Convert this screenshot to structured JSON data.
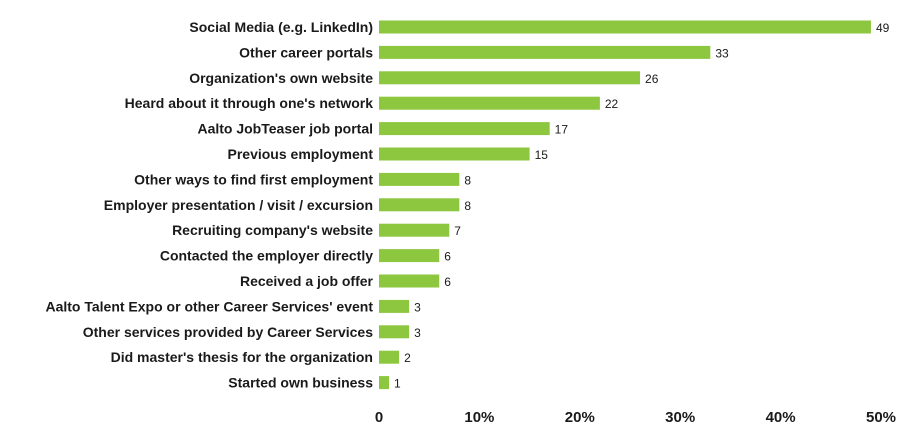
{
  "chart_data": {
    "type": "bar",
    "orientation": "horizontal",
    "title": "",
    "xlabel": "",
    "ylabel": "",
    "categories": [
      "Social Media (e.g. LinkedIn)",
      "Other career portals",
      "Organization's own website",
      "Heard about it  through one's network",
      "Aalto JobTeaser job portal",
      "Previous employment",
      "Other ways to find first employment",
      "Employer presentation / visit / excursion",
      "Recruiting company's website",
      "Contacted the employer directly",
      "Received a job offer",
      "Aalto Talent Expo or other Career Services' event",
      "Other services provided by Career Services",
      "Did master's thesis for the organization",
      "Started own business"
    ],
    "values": [
      49,
      33,
      26,
      22,
      17,
      15,
      8,
      8,
      7,
      6,
      6,
      3,
      3,
      2,
      1
    ],
    "xlim": [
      0,
      50
    ],
    "x_ticks": [
      "0",
      "10%",
      "20%",
      "30%",
      "40%",
      "50%"
    ],
    "bar_color": "#8dc63f",
    "grid": false,
    "legend": "none"
  }
}
